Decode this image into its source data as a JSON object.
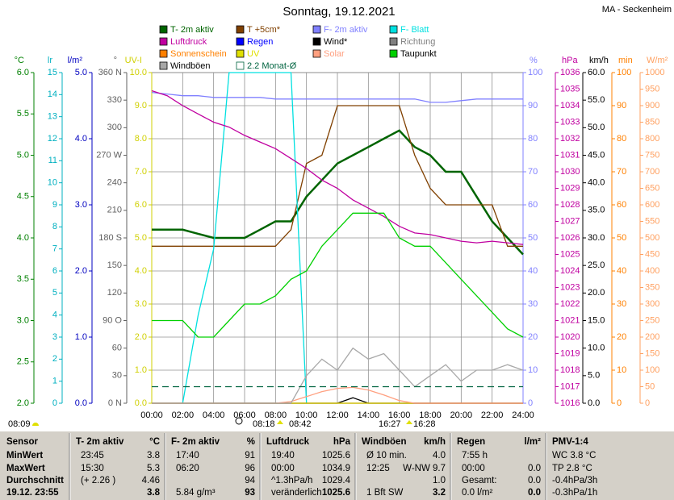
{
  "title": "Sonntag, 19.12.2021",
  "station": "MA - Seckenheim",
  "chart_data": {
    "type": "line",
    "grid": true,
    "x": [
      0,
      1,
      2,
      3,
      4,
      5,
      6,
      7,
      8,
      9,
      10,
      11,
      12,
      13,
      14,
      15,
      16,
      17,
      18,
      19,
      20,
      21,
      22,
      23,
      24
    ],
    "xlim": [
      0,
      24
    ],
    "xticks": [
      {
        "value": 0,
        "label": "00:00"
      },
      {
        "value": 2,
        "label": "02:00"
      },
      {
        "value": 4,
        "label": "04:00"
      },
      {
        "value": 6,
        "label": "06:00"
      },
      {
        "value": 8,
        "label": "08:00"
      },
      {
        "value": 10,
        "label": "10:00"
      },
      {
        "value": 12,
        "label": "12:00"
      },
      {
        "value": 14,
        "label": "14:00"
      },
      {
        "value": 16,
        "label": "16:00"
      },
      {
        "value": 18,
        "label": "18:00"
      },
      {
        "value": 20,
        "label": "20:00"
      },
      {
        "value": 22,
        "label": "22:00"
      },
      {
        "value": 24,
        "label": "24:00"
      }
    ],
    "axes": [
      {
        "label": "°C",
        "color": "#008000",
        "side": "left",
        "ylim": [
          2,
          6
        ],
        "yticks": [
          {
            "value": 6,
            "label": "6.0"
          },
          5.5,
          {
            "value": 5,
            "label": "5.0"
          },
          4.5,
          {
            "value": 4,
            "label": "4.0"
          },
          3.5,
          {
            "value": 3,
            "label": "3.0"
          },
          2.5,
          {
            "value": 2,
            "label": "2.0"
          }
        ]
      },
      {
        "label": "lr",
        "color": "#00b0c0",
        "side": "left",
        "ylim": [
          0,
          15
        ],
        "yticks": [
          15,
          14,
          13,
          12,
          11,
          10,
          9,
          8,
          7,
          6,
          5,
          4,
          3,
          2,
          1,
          0
        ]
      },
      {
        "label": "l/m²",
        "color": "#0000c0",
        "side": "left",
        "ylim": [
          0,
          5
        ],
        "yticks": [
          {
            "value": 5,
            "label": "5.0"
          },
          {
            "value": 4,
            "label": "4.0"
          },
          {
            "value": 3,
            "label": "3.0"
          },
          {
            "value": 2,
            "label": "2.0"
          },
          {
            "value": 1,
            "label": "1.0"
          },
          {
            "value": 0,
            "label": "0.0"
          }
        ]
      },
      {
        "label": "°",
        "color": "#606060",
        "side": "left",
        "ylim": [
          0,
          360
        ],
        "yticks": [
          {
            "value": 360,
            "label": "360 N"
          },
          330,
          300,
          {
            "value": 270,
            "label": "270 W"
          },
          240,
          210,
          {
            "value": 180,
            "label": "180 S"
          },
          150,
          120,
          {
            "value": 90,
            "label": "90 O"
          },
          60,
          30,
          {
            "value": 0,
            "label": "0 N"
          }
        ]
      },
      {
        "label": "UV-I",
        "color": "#d0d000",
        "side": "left",
        "grid": true,
        "ylim": [
          0,
          10
        ],
        "yticks": [
          {
            "value": 10,
            "label": "10.0"
          },
          {
            "value": 9,
            "label": "9.0"
          },
          {
            "value": 8,
            "label": "8.0"
          },
          {
            "value": 7,
            "label": "7.0"
          },
          {
            "value": 6,
            "label": "6.0"
          },
          {
            "value": 5,
            "label": "5.0"
          },
          {
            "value": 4,
            "label": "4.0"
          },
          {
            "value": 3,
            "label": "3.0"
          },
          {
            "value": 2,
            "label": "2.0"
          },
          {
            "value": 1,
            "label": "1.0"
          },
          {
            "value": 0,
            "label": "0.0"
          }
        ]
      },
      {
        "label": "%",
        "color": "#8080ff",
        "side": "right",
        "ylim": [
          0,
          100
        ],
        "yticks": [
          100,
          90,
          80,
          70,
          60,
          50,
          40,
          30,
          20,
          10,
          0
        ]
      },
      {
        "label": "hPa",
        "color": "#c000a0",
        "side": "right",
        "ylim": [
          1016,
          1036
        ],
        "yticks": [
          1036,
          1035,
          1034,
          1033,
          1032,
          1031,
          1030,
          1029,
          1028,
          1027,
          1026,
          1025,
          1024,
          1023,
          1022,
          1021,
          1020,
          1019,
          1018,
          1017,
          1016
        ]
      },
      {
        "label": "km/h",
        "color": "#000000",
        "side": "right",
        "ylim": [
          0,
          60
        ],
        "yticks": [
          {
            "value": 60,
            "label": "60.0"
          },
          {
            "value": 55,
            "label": "55.0"
          },
          {
            "value": 50,
            "label": "50.0"
          },
          {
            "value": 45,
            "label": "45.0"
          },
          {
            "value": 40,
            "label": "40.0"
          },
          {
            "value": 35,
            "label": "35.0"
          },
          {
            "value": 30,
            "label": "30.0"
          },
          {
            "value": 25,
            "label": "25.0"
          },
          {
            "value": 20,
            "label": "20.0"
          },
          {
            "value": 15,
            "label": "15.0"
          },
          {
            "value": 10,
            "label": "10.0"
          },
          {
            "value": 5,
            "label": "5.0"
          },
          {
            "value": 0,
            "label": "0.0"
          }
        ]
      },
      {
        "label": "min",
        "color": "#ff8000",
        "side": "right",
        "ylim": [
          0,
          100
        ],
        "yticks": [
          100,
          90,
          80,
          70,
          60,
          50,
          40,
          30,
          20,
          10,
          0
        ]
      },
      {
        "label": "W/m²",
        "color": "#ffa060",
        "side": "right",
        "ylim": [
          0,
          1000
        ],
        "yticks": [
          1000,
          950,
          900,
          850,
          800,
          750,
          700,
          650,
          600,
          550,
          500,
          450,
          400,
          350,
          300,
          250,
          200,
          150,
          100,
          50,
          0
        ]
      }
    ],
    "series": [
      {
        "name": "T- 2m aktiv",
        "color": "#006400",
        "axis": 0,
        "values": [
          4.1,
          4.1,
          4.1,
          4.05,
          4.0,
          4.0,
          4.0,
          4.1,
          4.2,
          4.2,
          4.5,
          4.7,
          4.9,
          5.0,
          5.1,
          5.2,
          5.3,
          5.1,
          5.0,
          4.8,
          4.8,
          4.5,
          4.2,
          4.0,
          3.8
        ]
      },
      {
        "name": "T +5cm*",
        "color": "#804000",
        "axis": 0,
        "values": [
          3.9,
          3.9,
          3.9,
          3.9,
          3.9,
          3.9,
          3.9,
          3.9,
          3.9,
          4.1,
          4.9,
          5.0,
          5.6,
          5.6,
          5.6,
          5.6,
          5.6,
          5.0,
          4.6,
          4.4,
          4.4,
          4.4,
          4.4,
          3.9,
          3.9
        ]
      },
      {
        "name": "F- 2m aktiv",
        "color": "#8080ff",
        "axis": 5,
        "values": [
          94,
          93.5,
          93,
          93,
          92.5,
          92.5,
          92.5,
          92.5,
          92,
          92,
          92,
          92,
          92,
          92,
          92,
          92,
          92,
          92,
          91,
          91,
          91.5,
          92,
          92,
          92,
          92
        ]
      },
      {
        "name": "F- Blatt",
        "color": "#00e0e0",
        "axis": 1,
        "values": [
          null,
          null,
          0,
          4,
          7,
          15,
          15,
          15,
          15,
          15,
          0,
          null,
          null,
          null,
          null,
          null,
          null,
          null,
          null,
          null,
          null,
          null,
          null,
          null,
          null
        ]
      },
      {
        "name": "Luftdruck",
        "color": "#c000a0",
        "axis": 6,
        "values": [
          1034.9,
          1034.6,
          1034.0,
          1033.5,
          1033.0,
          1032.7,
          1032.2,
          1031.8,
          1031.4,
          1030.8,
          1030.2,
          1029.5,
          1029.0,
          1028.3,
          1027.8,
          1027.3,
          1026.7,
          1026.3,
          1026.2,
          1026.0,
          1025.8,
          1025.7,
          1025.8,
          1025.7,
          1025.6
        ]
      },
      {
        "name": "Regen",
        "color": "#0000ff",
        "axis": 2,
        "values": [
          0,
          0,
          0,
          0,
          0,
          0,
          0,
          0,
          0,
          0,
          0,
          0,
          0,
          0,
          0,
          0,
          0,
          0,
          0,
          0,
          0,
          0,
          0,
          0,
          0
        ]
      },
      {
        "name": "Wind*",
        "color": "#000000",
        "axis": 7,
        "values": [
          0,
          0,
          0,
          0,
          0,
          0,
          0,
          0,
          0,
          0,
          0,
          0,
          0,
          1,
          0,
          0,
          0,
          0,
          0,
          0,
          0,
          0,
          0,
          0,
          0
        ]
      },
      {
        "name": "Richtung",
        "color": "#808080",
        "axis": 3,
        "values": [
          null,
          null,
          null,
          null,
          null,
          null,
          null,
          null,
          null,
          null,
          null,
          null,
          null,
          null,
          null,
          null,
          null,
          null,
          null,
          null,
          null,
          null,
          null,
          null,
          null
        ]
      },
      {
        "name": "Sonnenschein",
        "color": "#ff8000",
        "axis": 8,
        "values": [
          0,
          0,
          0,
          0,
          0,
          0,
          0,
          0,
          0,
          0,
          0,
          0,
          0,
          0,
          0,
          0,
          0,
          0,
          0,
          0,
          0,
          0,
          0,
          0,
          0
        ]
      },
      {
        "name": "UV",
        "color": "#e0e000",
        "axis": 4,
        "values": [
          0,
          0,
          0,
          0,
          0,
          0,
          0,
          0,
          0,
          0,
          0,
          0,
          0,
          0,
          0,
          0,
          0,
          0,
          0,
          0,
          0,
          0,
          0,
          0,
          0
        ]
      },
      {
        "name": "Solar",
        "color": "#ffa080",
        "axis": 9,
        "values": [
          0,
          0,
          0,
          0,
          0,
          0,
          0,
          0,
          0,
          5,
          20,
          35,
          45,
          48,
          40,
          25,
          8,
          0,
          0,
          0,
          0,
          0,
          0,
          0,
          0
        ]
      },
      {
        "name": "Taupunkt",
        "color": "#00d000",
        "axis": 0,
        "values": [
          3.0,
          3.0,
          3.0,
          2.8,
          2.8,
          3.0,
          3.2,
          3.2,
          3.3,
          3.5,
          3.6,
          3.9,
          4.1,
          4.3,
          4.3,
          4.3,
          4.0,
          3.9,
          3.9,
          3.7,
          3.5,
          3.3,
          3.1,
          2.9,
          2.8
        ]
      },
      {
        "name": "Windböen",
        "color": "#a8a8a8",
        "axis": 7,
        "values": [
          0,
          0,
          0,
          0,
          0,
          0,
          0,
          0,
          0,
          0,
          5,
          8,
          6,
          10,
          8,
          9,
          6,
          3,
          5,
          7,
          4,
          6,
          6,
          7,
          6
        ]
      },
      {
        "name": "2.2 Monat-Ø",
        "color": "#006440",
        "axis": 0,
        "dashed": true,
        "values": [
          2.2,
          2.2,
          2.2,
          2.2,
          2.2,
          2.2,
          2.2,
          2.2,
          2.2,
          2.2,
          2.2,
          2.2,
          2.2,
          2.2,
          2.2,
          2.2,
          2.2,
          2.2,
          2.2,
          2.2,
          2.2,
          2.2,
          2.2,
          2.2,
          2.2
        ]
      }
    ],
    "sun": [
      "08:09",
      "08:18",
      "08:42",
      "16:27",
      "16:28"
    ]
  },
  "table": {
    "labels": [
      "Sensor",
      "MinWert",
      "MaxWert",
      "Durchschnitt",
      "19.12. 23:55"
    ],
    "panels": [
      {
        "title": "T- 2m aktiv",
        "unit": "°C",
        "rows": [
          [
            "23:45",
            "3.8"
          ],
          [
            "15:30",
            "5.3"
          ],
          [
            "(+ 2.26 )",
            "4.46"
          ],
          [
            null,
            "3.8"
          ]
        ]
      },
      {
        "title": "F- 2m aktiv",
        "unit": "%",
        "rows": [
          [
            "17:40",
            "91"
          ],
          [
            "06:20",
            "96"
          ],
          [
            null,
            "94"
          ],
          [
            "5.84 g/m³",
            "93"
          ]
        ]
      },
      {
        "title": "Luftdruck",
        "unit": "hPa",
        "rows": [
          [
            "19:40",
            "1025.6"
          ],
          [
            "00:00",
            "1034.9"
          ],
          [
            "^1.3hPa/h",
            "1029.4"
          ],
          [
            "veränderlich",
            "1025.6"
          ]
        ]
      },
      {
        "title": "Windböen",
        "unit": "km/h",
        "rows": [
          [
            "Ø 10 min.",
            "4.0"
          ],
          [
            "12:25",
            "W-NW 9.7"
          ],
          [
            null,
            "1.0"
          ],
          [
            "1 Bft SW",
            "3.2"
          ]
        ]
      },
      {
        "title": "Regen",
        "unit": "l/m²",
        "rows": [
          [
            "7:55 h",
            null
          ],
          [
            "00:00",
            "0.0"
          ],
          [
            "Gesamt:",
            "0.0"
          ],
          [
            "0.0 l/m²",
            "0.0"
          ]
        ]
      },
      {
        "title": "PMV-1:4",
        "rows": [
          [
            "WC 3.8 °C"
          ],
          [
            "TP 2.8 °C"
          ],
          [
            "-0.4hPa/3h"
          ],
          [
            "-0.3hPa/1h"
          ]
        ]
      }
    ]
  }
}
